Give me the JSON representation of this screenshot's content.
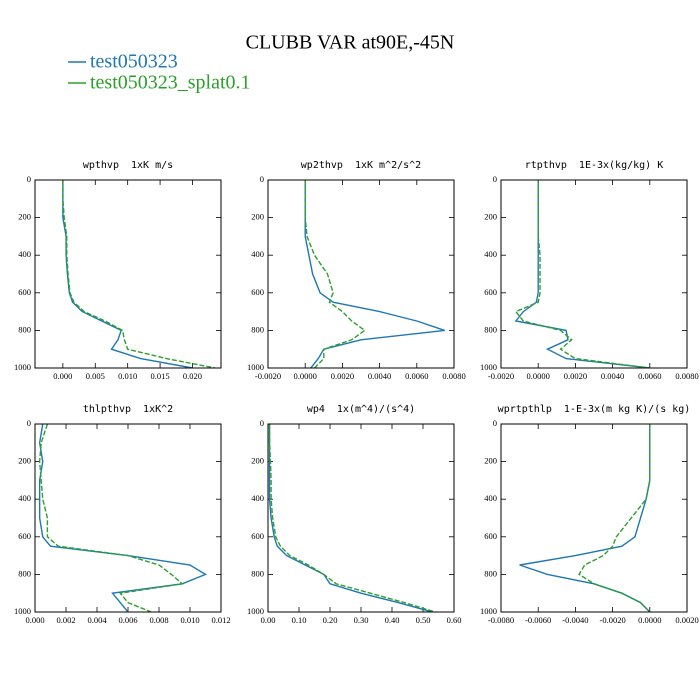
{
  "title": "CLUBB VAR at90E,-45N",
  "chart_data": [
    {
      "type": "line",
      "title": "wpthvp  1xK m/s",
      "invert_y": true,
      "y": [
        0,
        100,
        200,
        300,
        400,
        500,
        600,
        650,
        700,
        750,
        800,
        850,
        900,
        950,
        1000
      ],
      "xlim": [
        -0.0043,
        0.0244
      ],
      "ylim": [
        0,
        1000
      ],
      "xticks": [
        {
          "value": 0,
          "label": "0.000"
        },
        {
          "value": 0.005,
          "label": "0.005"
        },
        {
          "value": 0.01,
          "label": "0.010"
        },
        {
          "value": 0.015,
          "label": "0.015"
        },
        {
          "value": 0.02,
          "label": "0.020"
        }
      ],
      "yticks": [
        0,
        200,
        400,
        600,
        800,
        1000
      ],
      "series": [
        {
          "name": "test050323",
          "color": "#1f77b4",
          "dash": false,
          "values": [
            0,
            0,
            0,
            0.0005,
            0.0005,
            0.0007,
            0.001,
            0.0015,
            0.003,
            0.006,
            0.009,
            0.0085,
            0.0075,
            0.012,
            0.02
          ]
        },
        {
          "name": "test050323_splat0.1",
          "color": "#2ca02c",
          "dash": true,
          "values": [
            0,
            0,
            0.0002,
            0.0006,
            0.0006,
            0.0008,
            0.0011,
            0.0017,
            0.0033,
            0.0065,
            0.0092,
            0.0095,
            0.01,
            0.016,
            0.0235
          ]
        }
      ]
    },
    {
      "type": "line",
      "title": "wp2thvp  1xK m^2/s^2",
      "invert_y": true,
      "y": [
        0,
        100,
        200,
        300,
        400,
        500,
        600,
        650,
        700,
        750,
        800,
        850,
        900,
        950,
        1000
      ],
      "xlim": [
        -0.002,
        0.008
      ],
      "ylim": [
        0,
        1000
      ],
      "xticks": [
        {
          "value": -0.002,
          "label": "-0.0020"
        },
        {
          "value": 0,
          "label": "0.0000"
        },
        {
          "value": 0.002,
          "label": "0.0020"
        },
        {
          "value": 0.004,
          "label": "0.0040"
        },
        {
          "value": 0.006,
          "label": "0.0060"
        },
        {
          "value": 0.008,
          "label": "0.0080"
        }
      ],
      "yticks": [
        0,
        200,
        400,
        600,
        800,
        1000
      ],
      "series": [
        {
          "name": "test050323",
          "color": "#1f77b4",
          "dash": false,
          "values": [
            0,
            0,
            0,
            0,
            0.0002,
            0.0004,
            0.0008,
            0.0015,
            0.004,
            0.006,
            0.0075,
            0.003,
            0.001,
            0.0007,
            0.0003
          ]
        },
        {
          "name": "test050323_splat0.1",
          "color": "#2ca02c",
          "dash": true,
          "values": [
            0,
            0,
            0,
            0.0001,
            0.0005,
            0.0012,
            0.0015,
            0.0013,
            0.002,
            0.0025,
            0.0032,
            0.0025,
            0.001,
            0.001,
            0.0005
          ]
        }
      ]
    },
    {
      "type": "line",
      "title": "rtpthvp  1E-3x(kg/kg) K",
      "invert_y": true,
      "y": [
        0,
        100,
        200,
        300,
        400,
        500,
        600,
        650,
        700,
        750,
        800,
        850,
        900,
        950,
        1000
      ],
      "xlim": [
        -0.002,
        0.008
      ],
      "ylim": [
        0,
        1000
      ],
      "xticks": [
        {
          "value": -0.002,
          "label": "-0.0020"
        },
        {
          "value": 0,
          "label": "0.0000"
        },
        {
          "value": 0.002,
          "label": "0.0020"
        },
        {
          "value": 0.004,
          "label": "0.0040"
        },
        {
          "value": 0.006,
          "label": "0.0060"
        },
        {
          "value": 0.008,
          "label": "0.0080"
        }
      ],
      "yticks": [
        0,
        200,
        400,
        600,
        800,
        1000
      ],
      "series": [
        {
          "name": "test050323",
          "color": "#1f77b4",
          "dash": false,
          "values": [
            0,
            0,
            0,
            0,
            0,
            0,
            0,
            -0.0001,
            -0.0008,
            -0.0012,
            0.0015,
            0.0016,
            0.0005,
            0.0015,
            0.006
          ]
        },
        {
          "name": "test050323_splat0.1",
          "color": "#2ca02c",
          "dash": true,
          "values": [
            0,
            0,
            0,
            0,
            0.0001,
            0.0001,
            0.0001,
            0,
            -0.0012,
            -0.0008,
            0.0012,
            0.0018,
            0.0012,
            0.002,
            0.006
          ]
        }
      ]
    },
    {
      "type": "line",
      "title": "thlpthvp  1xK^2",
      "invert_y": true,
      "y": [
        0,
        100,
        200,
        300,
        400,
        500,
        600,
        650,
        700,
        750,
        800,
        850,
        900,
        950,
        1000
      ],
      "xlim": [
        0,
        0.012
      ],
      "ylim": [
        0,
        1000
      ],
      "xticks": [
        {
          "value": 0,
          "label": "0.000"
        },
        {
          "value": 0.002,
          "label": "0.002"
        },
        {
          "value": 0.004,
          "label": "0.004"
        },
        {
          "value": 0.006,
          "label": "0.006"
        },
        {
          "value": 0.008,
          "label": "0.008"
        },
        {
          "value": 0.01,
          "label": "0.010"
        },
        {
          "value": 0.012,
          "label": "0.012"
        }
      ],
      "yticks": [
        0,
        200,
        400,
        600,
        800,
        1000
      ],
      "series": [
        {
          "name": "test050323",
          "color": "#1f77b4",
          "dash": false,
          "values": [
            0.0005,
            0.0003,
            0.0005,
            0.0003,
            0.0003,
            0.0003,
            0.0005,
            0.001,
            0.006,
            0.01,
            0.011,
            0.0095,
            0.005,
            0.0055,
            0.006
          ]
        },
        {
          "name": "test050323_splat0.1",
          "color": "#2ca02c",
          "dash": true,
          "values": [
            0.0008,
            0.0004,
            0.0003,
            0.0004,
            0.0005,
            0.0008,
            0.0008,
            0.0015,
            0.006,
            0.008,
            0.0088,
            0.0095,
            0.0055,
            0.006,
            0.0075
          ]
        }
      ]
    },
    {
      "type": "line",
      "title": "wp4  1x(m^4)/(s^4)",
      "invert_y": true,
      "y": [
        0,
        100,
        200,
        300,
        400,
        500,
        600,
        650,
        700,
        750,
        800,
        850,
        900,
        950,
        1000
      ],
      "xlim": [
        0,
        0.6
      ],
      "ylim": [
        0,
        1000
      ],
      "xticks": [
        {
          "value": 0,
          "label": "0.00"
        },
        {
          "value": 0.1,
          "label": "0.10"
        },
        {
          "value": 0.2,
          "label": "0.20"
        },
        {
          "value": 0.3,
          "label": "0.30"
        },
        {
          "value": 0.4,
          "label": "0.40"
        },
        {
          "value": 0.5,
          "label": "0.50"
        },
        {
          "value": 0.6,
          "label": "0.60"
        }
      ],
      "yticks": [
        0,
        200,
        400,
        600,
        800,
        1000
      ],
      "series": [
        {
          "name": "test050323",
          "color": "#1f77b4",
          "dash": false,
          "values": [
            0.005,
            0.005,
            0.005,
            0.005,
            0.005,
            0.01,
            0.02,
            0.03,
            0.06,
            0.12,
            0.18,
            0.2,
            0.3,
            0.42,
            0.53
          ]
        },
        {
          "name": "test050323_splat0.1",
          "color": "#2ca02c",
          "dash": true,
          "values": [
            0.005,
            0.005,
            0.008,
            0.01,
            0.01,
            0.015,
            0.025,
            0.04,
            0.07,
            0.13,
            0.18,
            0.22,
            0.33,
            0.44,
            0.54
          ]
        }
      ]
    },
    {
      "type": "line",
      "title": "wprtpthlp  1-E-3x(m kg K)/(s kg)",
      "invert_y": true,
      "y": [
        0,
        100,
        200,
        300,
        400,
        500,
        600,
        650,
        700,
        750,
        800,
        850,
        900,
        950,
        1000
      ],
      "xlim": [
        -0.008,
        0.002
      ],
      "ylim": [
        0,
        1000
      ],
      "xticks": [
        {
          "value": -0.008,
          "label": "-0.0080"
        },
        {
          "value": -0.006,
          "label": "-0.0060"
        },
        {
          "value": -0.004,
          "label": "-0.0040"
        },
        {
          "value": -0.002,
          "label": "-0.0020"
        },
        {
          "value": 0,
          "label": "0.0000"
        },
        {
          "value": 0.002,
          "label": "0.0020"
        }
      ],
      "yticks": [
        0,
        200,
        400,
        600,
        800,
        1000
      ],
      "series": [
        {
          "name": "test050323",
          "color": "#1f77b4",
          "dash": false,
          "values": [
            0,
            0,
            0,
            0,
            -0.0002,
            -0.0005,
            -0.0008,
            -0.0015,
            -0.004,
            -0.007,
            -0.0055,
            -0.003,
            -0.0015,
            -0.0005,
            0
          ]
        },
        {
          "name": "test050323_splat0.1",
          "color": "#2ca02c",
          "dash": true,
          "values": [
            0,
            0,
            0,
            0,
            -0.0002,
            -0.001,
            -0.0018,
            -0.002,
            -0.0025,
            -0.0035,
            -0.0038,
            -0.003,
            -0.0015,
            -0.0005,
            0
          ]
        }
      ]
    }
  ]
}
